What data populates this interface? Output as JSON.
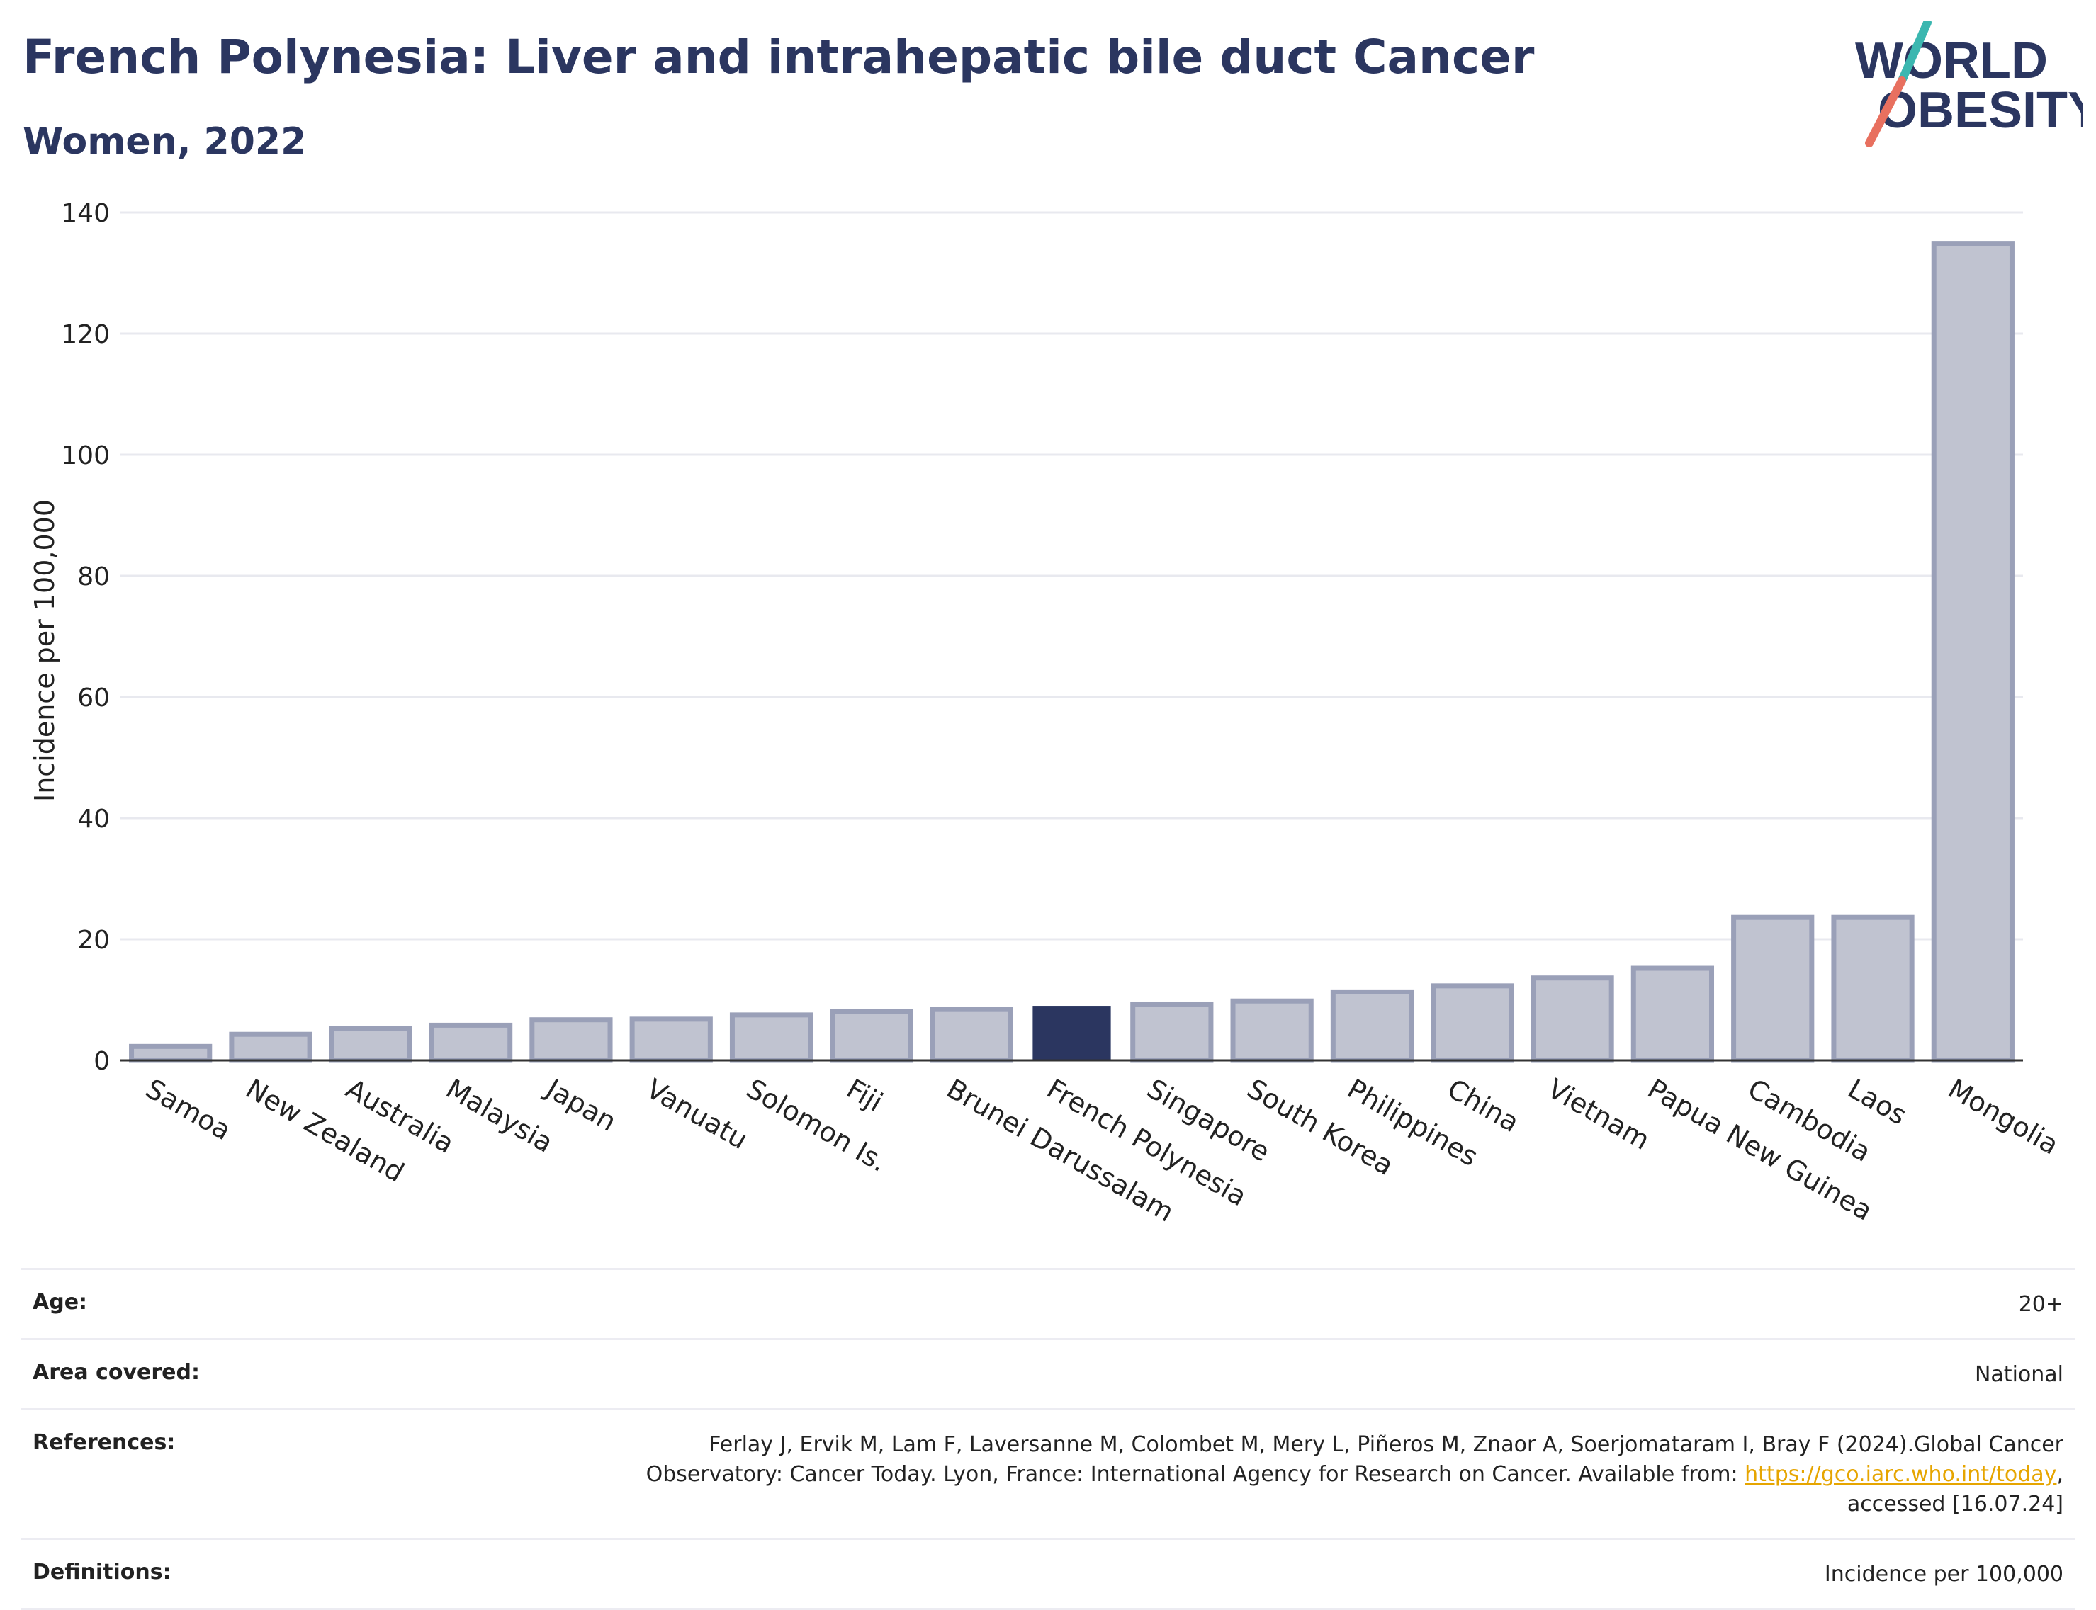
{
  "title": "French Polynesia: Liver and intrahepatic bile duct Cancer",
  "subtitle": "Women, 2022",
  "logo": {
    "line1": "WORLD",
    "line2": "OBESITY",
    "colors": {
      "text": "#2b3660",
      "slash_top": "#3bb7b0",
      "slash_bottom": "#e8705f"
    }
  },
  "colors": {
    "bar": "#c0c3d0",
    "bar_border": "#9aa0b8",
    "highlight": "#2b3660",
    "grid": "#e8e9ef"
  },
  "chart_data": {
    "type": "bar",
    "categories": [
      "Samoa",
      "New Zealand",
      "Australia",
      "Malaysia",
      "Japan",
      "Vanuatu",
      "Solomon Is.",
      "Fiji",
      "Brunei Darussalam",
      "French Polynesia",
      "Singapore",
      "South Korea",
      "Philippines",
      "China",
      "Vietnam",
      "Papua New Guinea",
      "Cambodia",
      "Laos",
      "Mongolia"
    ],
    "values": [
      2.3,
      4.3,
      5.3,
      5.8,
      6.7,
      6.8,
      7.5,
      8.1,
      8.4,
      9.0,
      9.3,
      9.8,
      11.3,
      12.3,
      13.6,
      15.2,
      23.6,
      23.6,
      134.9
    ],
    "highlight": "French Polynesia",
    "ylabel": "Incidence per 100,000",
    "ylim": [
      0,
      140
    ],
    "yticks": [
      0,
      20,
      40,
      60,
      80,
      100,
      120,
      140
    ],
    "grid": true
  },
  "meta": {
    "age_label": "Age:",
    "age_value": "20+",
    "area_label": "Area covered:",
    "area_value": "National",
    "references_label": "References:",
    "references_line1": "Ferlay J, Ervik M, Lam F, Laversanne M, Colombet M, Mery L, Piñeros M, Znaor A, Soerjomataram I, Bray F (2024).Global Cancer",
    "references_line2_pre": "Observatory: Cancer Today. Lyon, France: International Agency for Research on Cancer. Available from: ",
    "references_link": "https://gco.iarc.who.int/today",
    "references_line2_post": ",",
    "references_line3": "accessed [16.07.24]",
    "definitions_label": "Definitions:",
    "definitions_value": "Incidence per 100,000"
  }
}
